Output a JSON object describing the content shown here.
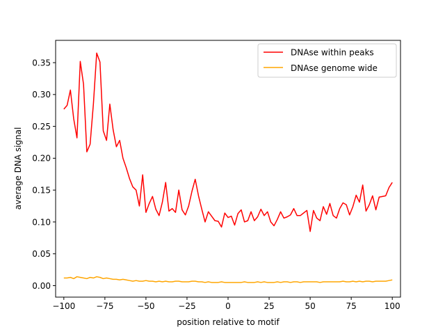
{
  "chart_data": {
    "type": "line",
    "title": "",
    "xlabel": "position relative to motif",
    "ylabel": "average DNA signal",
    "xlim": [
      -105,
      105
    ],
    "ylim": [
      -0.018,
      0.385
    ],
    "x_ticks": [
      -100,
      -75,
      -50,
      -25,
      0,
      25,
      50,
      75,
      100
    ],
    "y_ticks": [
      0.0,
      0.05,
      0.1,
      0.15,
      0.2,
      0.25,
      0.3,
      0.35
    ],
    "x_tick_labels": [
      "−100",
      "−75",
      "−50",
      "−25",
      "0",
      "25",
      "50",
      "75",
      "100"
    ],
    "y_tick_labels": [
      "0.00",
      "0.05",
      "0.10",
      "0.15",
      "0.20",
      "0.25",
      "0.30",
      "0.35"
    ],
    "grid": false,
    "legend_position": "top-right",
    "x": [
      -100,
      -98,
      -96,
      -94,
      -92,
      -90,
      -88,
      -86,
      -84,
      -82,
      -80,
      -78,
      -76,
      -74,
      -72,
      -70,
      -68,
      -66,
      -64,
      -62,
      -60,
      -58,
      -56,
      -54,
      -52,
      -50,
      -48,
      -46,
      -44,
      -42,
      -40,
      -38,
      -36,
      -34,
      -32,
      -30,
      -28,
      -26,
      -24,
      -22,
      -20,
      -18,
      -16,
      -14,
      -12,
      -10,
      -8,
      -6,
      -4,
      -2,
      0,
      2,
      4,
      6,
      8,
      10,
      12,
      14,
      16,
      18,
      20,
      22,
      24,
      26,
      28,
      30,
      32,
      34,
      36,
      38,
      40,
      42,
      44,
      46,
      48,
      50,
      52,
      54,
      56,
      58,
      60,
      62,
      64,
      66,
      68,
      70,
      72,
      74,
      76,
      78,
      80,
      82,
      84,
      86,
      88,
      90,
      92,
      94,
      96,
      98,
      100
    ],
    "series": [
      {
        "name": "DNAse within peaks",
        "color": "#ff0000",
        "values": [
          0.277,
          0.283,
          0.307,
          0.262,
          0.232,
          0.352,
          0.316,
          0.21,
          0.222,
          0.285,
          0.365,
          0.351,
          0.243,
          0.228,
          0.285,
          0.245,
          0.218,
          0.228,
          0.2,
          0.185,
          0.168,
          0.155,
          0.15,
          0.125,
          0.174,
          0.115,
          0.129,
          0.14,
          0.12,
          0.11,
          0.131,
          0.162,
          0.117,
          0.121,
          0.115,
          0.15,
          0.119,
          0.111,
          0.125,
          0.148,
          0.167,
          0.141,
          0.12,
          0.1,
          0.116,
          0.109,
          0.102,
          0.101,
          0.092,
          0.114,
          0.107,
          0.109,
          0.095,
          0.113,
          0.119,
          0.1,
          0.102,
          0.116,
          0.102,
          0.108,
          0.12,
          0.11,
          0.116,
          0.1,
          0.094,
          0.104,
          0.116,
          0.106,
          0.108,
          0.111,
          0.121,
          0.11,
          0.11,
          0.114,
          0.118,
          0.085,
          0.118,
          0.106,
          0.102,
          0.124,
          0.112,
          0.129,
          0.11,
          0.106,
          0.121,
          0.13,
          0.127,
          0.111,
          0.124,
          0.142,
          0.131,
          0.158,
          0.117,
          0.127,
          0.141,
          0.119,
          0.139,
          0.14,
          0.141,
          0.154,
          0.162
        ]
      },
      {
        "name": "DNAse genome wide",
        "color": "#ffa500",
        "values": [
          0.012,
          0.012,
          0.013,
          0.011,
          0.014,
          0.013,
          0.012,
          0.011,
          0.013,
          0.012,
          0.014,
          0.013,
          0.011,
          0.012,
          0.011,
          0.01,
          0.01,
          0.009,
          0.01,
          0.009,
          0.008,
          0.007,
          0.008,
          0.007,
          0.007,
          0.008,
          0.007,
          0.007,
          0.006,
          0.007,
          0.006,
          0.007,
          0.006,
          0.006,
          0.007,
          0.007,
          0.006,
          0.006,
          0.006,
          0.007,
          0.007,
          0.006,
          0.006,
          0.005,
          0.006,
          0.005,
          0.005,
          0.005,
          0.006,
          0.005,
          0.005,
          0.005,
          0.005,
          0.005,
          0.005,
          0.006,
          0.005,
          0.005,
          0.005,
          0.006,
          0.005,
          0.006,
          0.005,
          0.005,
          0.005,
          0.006,
          0.005,
          0.006,
          0.006,
          0.005,
          0.006,
          0.006,
          0.005,
          0.006,
          0.006,
          0.006,
          0.006,
          0.006,
          0.005,
          0.006,
          0.006,
          0.006,
          0.006,
          0.006,
          0.006,
          0.007,
          0.006,
          0.006,
          0.007,
          0.006,
          0.007,
          0.006,
          0.007,
          0.007,
          0.006,
          0.007,
          0.007,
          0.007,
          0.007,
          0.008,
          0.009
        ]
      }
    ]
  }
}
